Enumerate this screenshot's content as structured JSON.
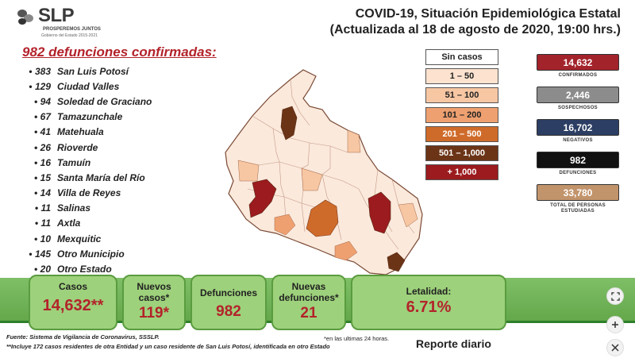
{
  "logo": {
    "text": "SLP",
    "slogan": "PROSPEREMOS JUNTOS",
    "subtitle": "Gobierno del Estado 2015-2021"
  },
  "title": {
    "line1": "COVID-19, Situación Epidemiológica Estatal",
    "line2": "(Actualizada al 18 de agosto de 2020, 19:00 hrs.)"
  },
  "deaths_heading": "982 defunciones confirmadas:",
  "municipalities": [
    {
      "count": "383",
      "name": "San Luis Potosí"
    },
    {
      "count": "129",
      "name": "Ciudad Valles"
    },
    {
      "count": "94",
      "name": "Soledad de Graciano"
    },
    {
      "count": "67",
      "name": "Tamazunchale"
    },
    {
      "count": "41",
      "name": "Matehuala"
    },
    {
      "count": "26",
      "name": "Rioverde"
    },
    {
      "count": "16",
      "name": "Tamuín"
    },
    {
      "count": "15",
      "name": "Santa María del Río"
    },
    {
      "count": "14",
      "name": "Villa de Reyes"
    },
    {
      "count": "11",
      "name": "Salinas"
    },
    {
      "count": "11",
      "name": "Axtla"
    },
    {
      "count": "10",
      "name": "Mexquitic"
    },
    {
      "count": "145",
      "name": "Otro Municipio"
    },
    {
      "count": "20",
      "name": "Otro Estado"
    }
  ],
  "legend": [
    {
      "label": "Sin casos",
      "color": "#ffffff",
      "text_color": "#222222"
    },
    {
      "label": "1 – 50",
      "color": "#fde3cf",
      "text_color": "#222222"
    },
    {
      "label": "51 – 100",
      "color": "#f7c7a3",
      "text_color": "#222222"
    },
    {
      "label": "101 – 200",
      "color": "#eea070",
      "text_color": "#222222"
    },
    {
      "label": "201 – 500",
      "color": "#cf6b2a",
      "text_color": "#ffffff"
    },
    {
      "label": "501 – 1,000",
      "color": "#6b3417",
      "text_color": "#ffffff"
    },
    {
      "label": "+ 1,000",
      "color": "#9b1b1f",
      "text_color": "#ffffff"
    }
  ],
  "stats": [
    {
      "value": "14,632",
      "label": "CONFIRMADOS",
      "color": "#a3232b"
    },
    {
      "value": "2,446",
      "label": "SOSPECHOSOS",
      "color": "#8c8c8c"
    },
    {
      "value": "16,702",
      "label": "NEGATIVOS",
      "color": "#2c3e63"
    },
    {
      "value": "982",
      "label": "DEFUNCIONES",
      "color": "#111111"
    },
    {
      "value": "33,780",
      "label": "TOTAL DE PERSONAS ESTUDIADAS",
      "color": "#c2946c"
    }
  ],
  "cards": {
    "casos": {
      "label": "Casos",
      "value": "14,632**"
    },
    "nuevos_casos": {
      "label1": "Nuevos",
      "label2": "casos*",
      "value": "119*"
    },
    "defunciones": {
      "label": "Defunciones",
      "value": "982"
    },
    "nuevas_defunciones": {
      "label1": "Nuevas",
      "label2": "defunciones*",
      "value": "21"
    },
    "letalidad": {
      "label": "Letalidad:",
      "value": "6.71%"
    }
  },
  "footer": {
    "source": "Fuente: Sistema de Vigilancia de Coronavirus, SSSLP.",
    "note": "**Incluye 172 casos residentes de otra Entidad y un caso residente de San Luis Potosí, identificada en otro Estado",
    "footnote": "*en las ultimas 24 horas.",
    "report": "Reporte diario"
  },
  "controls": [
    "fullscreen-icon",
    "plus-icon",
    "close-icon"
  ]
}
